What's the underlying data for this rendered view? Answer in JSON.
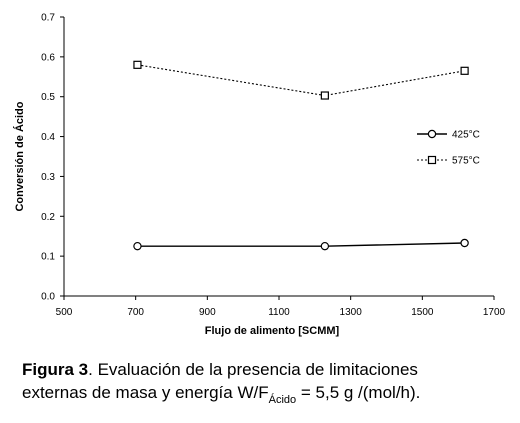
{
  "chart_data": {
    "type": "line",
    "title": "",
    "xlabel": "Flujo de alimento [SCMM]",
    "ylabel": "Conversión de Ácido",
    "xlim": [
      500,
      1700
    ],
    "ylim": [
      0,
      0.7
    ],
    "xticks": [
      500,
      700,
      900,
      1100,
      1300,
      1500,
      1700
    ],
    "xtick_labels": [
      "500",
      "700",
      "900",
      "1100",
      "1300",
      "1500",
      "1700"
    ],
    "yticks": [
      0,
      0.1,
      0.2,
      0.3,
      0.4,
      0.5,
      0.6,
      0.7
    ],
    "ytick_labels": [
      "0.0",
      "0.1",
      "0.2",
      "0.3",
      "0.4",
      "0.5",
      "0.6",
      "0.7"
    ],
    "grid": false,
    "legend_position": "right",
    "series": [
      {
        "name": "425°C",
        "x": [
          705,
          1228,
          1618
        ],
        "y": [
          0.125,
          0.125,
          0.133
        ],
        "line": "solid",
        "marker": "circle",
        "color": "#000000"
      },
      {
        "name": "575°C",
        "x": [
          705,
          1228,
          1618
        ],
        "y": [
          0.58,
          0.503,
          0.565
        ],
        "line": "dotted",
        "marker": "square",
        "color": "#000000"
      }
    ]
  },
  "caption": {
    "label": "Figura 3",
    "line1": ". Evaluación de la presencia de limitaciones",
    "line2_pre": "externas de masa y energía W/F",
    "line2_sub": "Ácido",
    "line2_post": " = 5,5 g /(mol/h)."
  }
}
